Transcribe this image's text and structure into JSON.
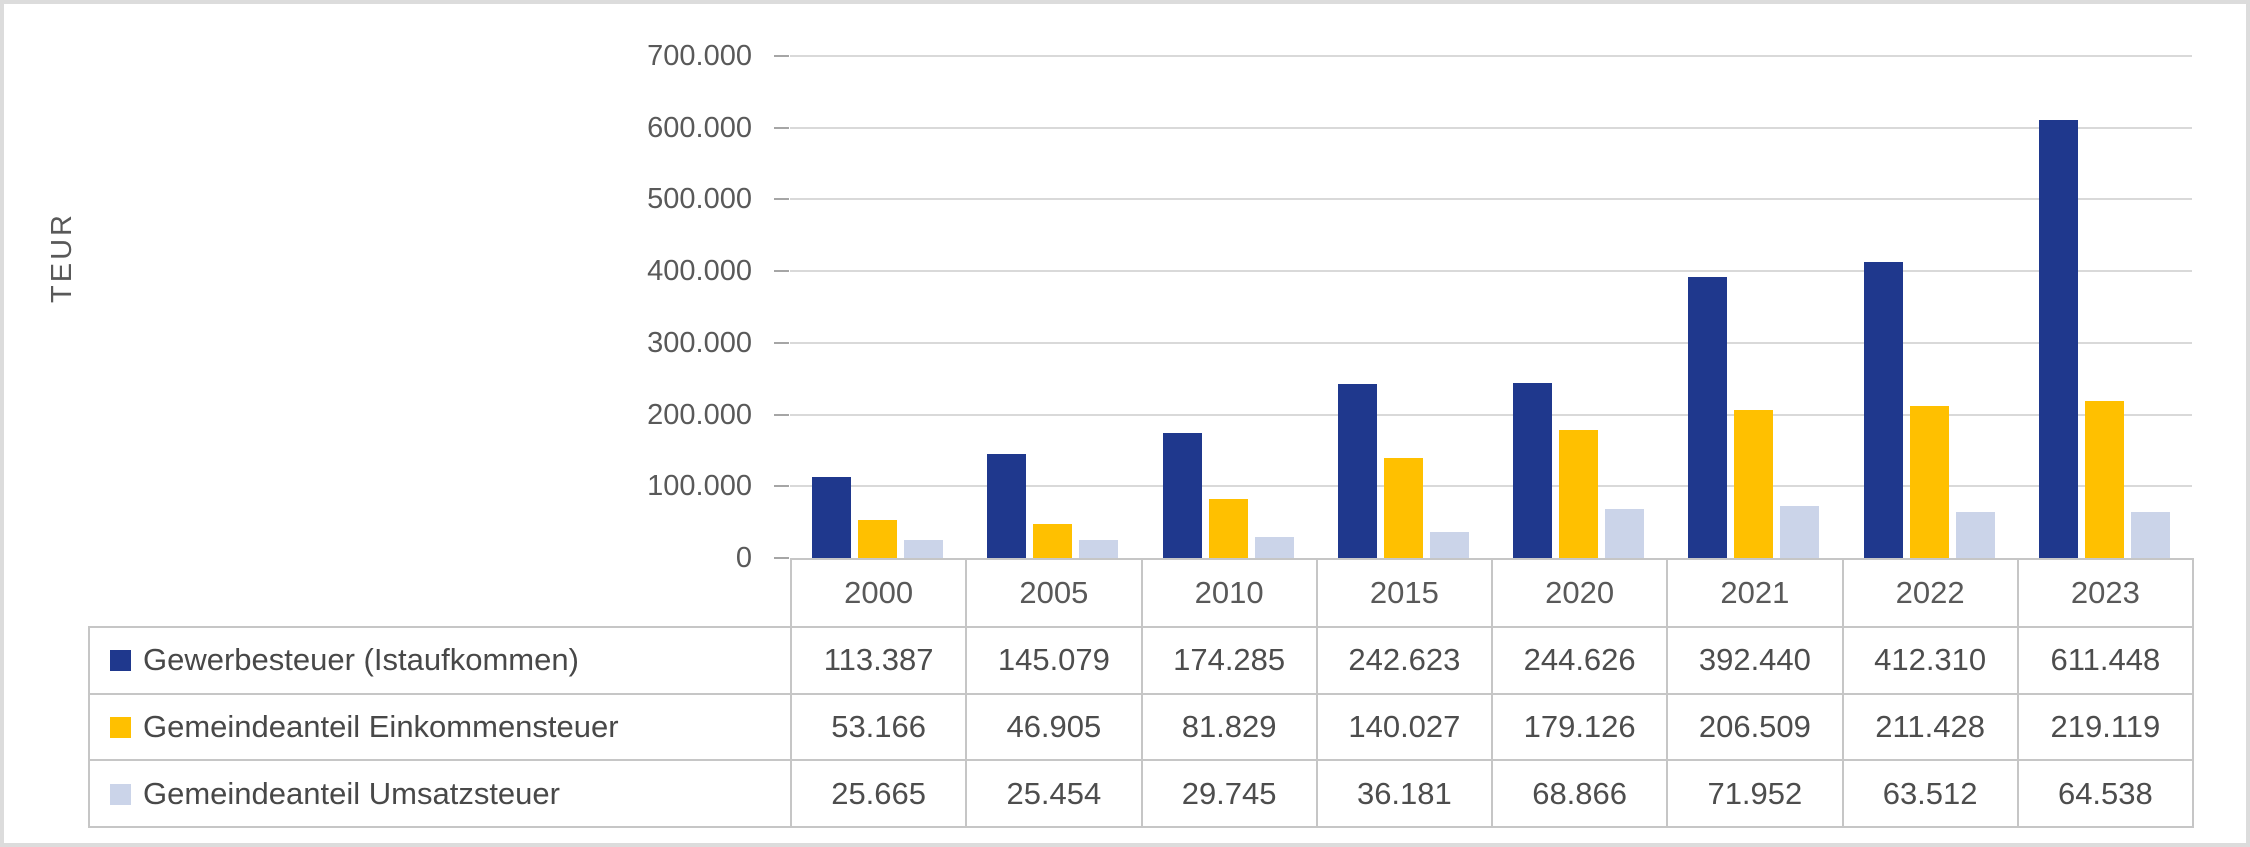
{
  "chart_data": {
    "type": "bar",
    "title": "",
    "xlabel": "",
    "ylabel": "TEUR",
    "ylim": [
      0,
      700000
    ],
    "y_tick_labels": [
      "700.000",
      "600.000",
      "500.000",
      "400.000",
      "300.000",
      "200.000",
      "100.000",
      "0"
    ],
    "grid": true,
    "legend_position": "table-left-column",
    "categories": [
      "2000",
      "2005",
      "2010",
      "2015",
      "2020",
      "2021",
      "2022",
      "2023"
    ],
    "series": [
      {
        "key": "gewerbesteuer",
        "name": "Gewerbesteuer (Istaufkommen)",
        "color": "#1f388d",
        "values": [
          113387,
          145079,
          174285,
          242623,
          244626,
          392440,
          412310,
          611448
        ],
        "display": [
          "113.387",
          "145.079",
          "174.285",
          "242.623",
          "244.626",
          "392.440",
          "412.310",
          "611.448"
        ]
      },
      {
        "key": "einkommensteuer",
        "name": "Gemeindeanteil Einkommensteuer",
        "color": "#ffc000",
        "values": [
          53166,
          46905,
          81829,
          140027,
          179126,
          206509,
          211428,
          219119
        ],
        "display": [
          "53.166",
          "46.905",
          "81.829",
          "140.027",
          "179.126",
          "206.509",
          "211.428",
          "219.119"
        ]
      },
      {
        "key": "umsatzsteuer",
        "name": "Gemeindeanteil Umsatzsteuer",
        "color": "#cbd4e9",
        "values": [
          25665,
          25454,
          29745,
          36181,
          68866,
          71952,
          63512,
          64538
        ],
        "display": [
          "25.665",
          "25.454",
          "29.745",
          "36.181",
          "68.866",
          "71.952",
          "63.512",
          "64.538"
        ]
      }
    ]
  }
}
